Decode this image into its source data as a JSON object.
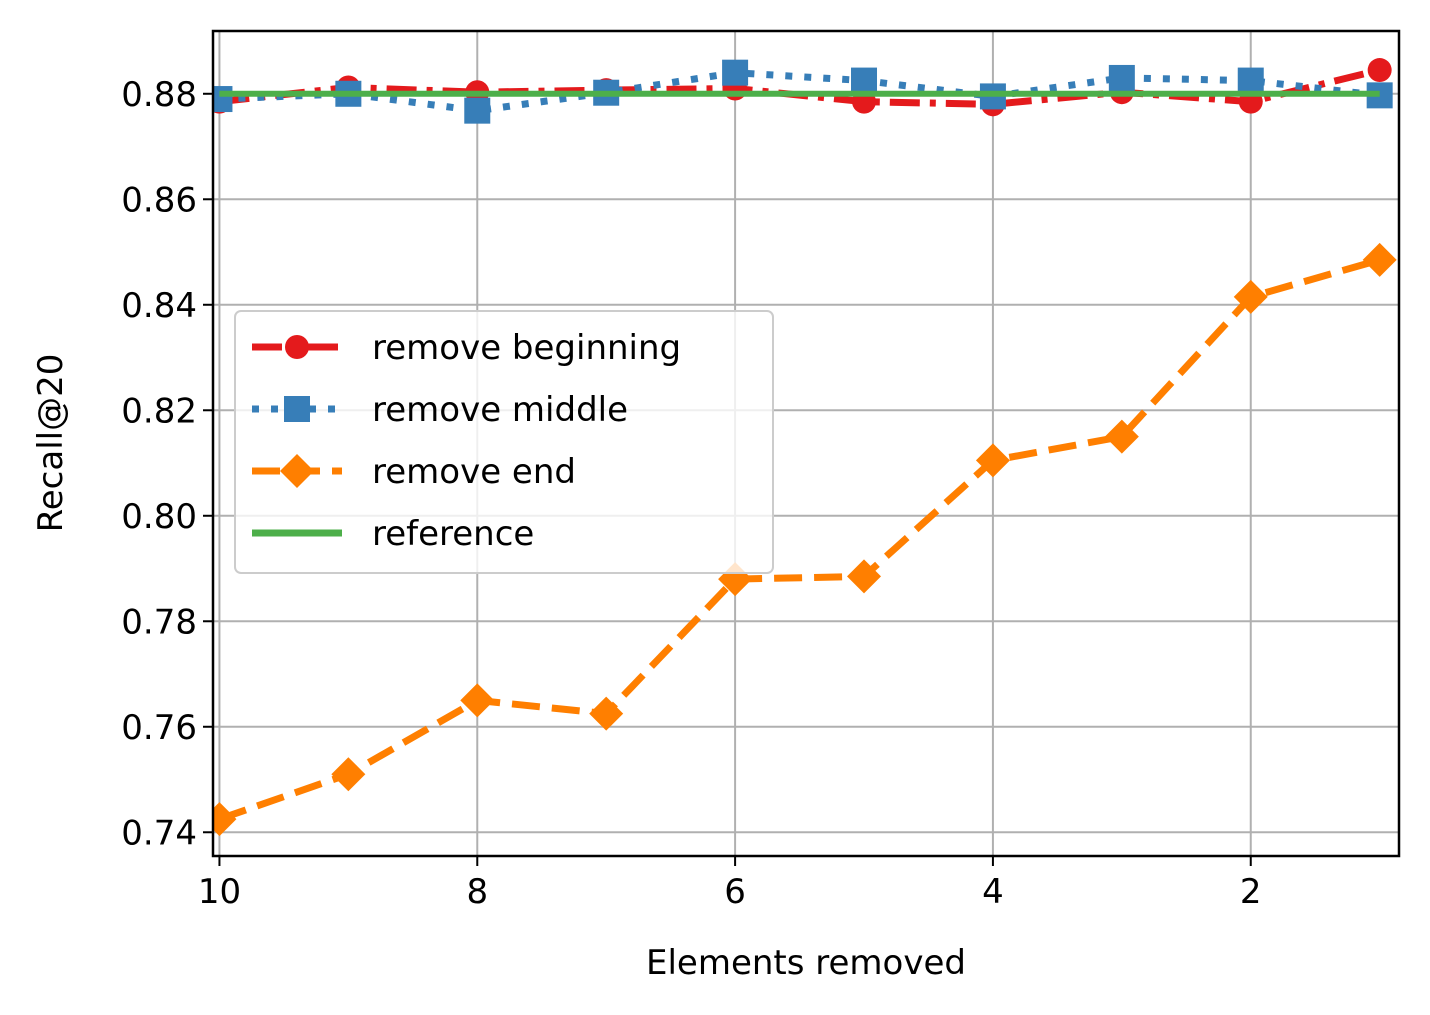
{
  "chart_data": {
    "type": "line",
    "title": "",
    "xlabel": "Elements removed",
    "ylabel": "Recall@20",
    "xlim": [
      10.05,
      0.85
    ],
    "ylim": [
      0.7355,
      0.8919
    ],
    "x_reversed": true,
    "grid": true,
    "legend_position": "center-left",
    "x_ticks": [
      10,
      8,
      6,
      4,
      2
    ],
    "x_tick_labels": [
      "10",
      "8",
      "6",
      "4",
      "2"
    ],
    "y_ticks": [
      0.74,
      0.76,
      0.78,
      0.8,
      0.82,
      0.84,
      0.86,
      0.88
    ],
    "y_tick_labels": [
      "0.74",
      "0.76",
      "0.78",
      "0.80",
      "0.82",
      "0.84",
      "0.86",
      "0.88"
    ],
    "x": [
      10,
      9,
      8,
      7,
      6,
      5,
      4,
      3,
      2,
      1
    ],
    "series": [
      {
        "name": "remove beginning",
        "color": "#e41a1c",
        "marker": "circle",
        "line_style": "dash-dot",
        "values": [
          0.8785,
          0.8812,
          0.8803,
          0.8807,
          0.881,
          0.8785,
          0.878,
          0.8803,
          0.8785,
          0.8845
        ]
      },
      {
        "name": "remove middle",
        "color": "#377eb8",
        "marker": "square",
        "line_style": "dotted",
        "values": [
          0.879,
          0.88,
          0.8768,
          0.8802,
          0.884,
          0.8825,
          0.8795,
          0.883,
          0.8825,
          0.8797
        ]
      },
      {
        "name": "remove end",
        "color": "#ff7f00",
        "marker": "diamond",
        "line_style": "dashed",
        "values": [
          0.7425,
          0.751,
          0.765,
          0.7625,
          0.788,
          0.7885,
          0.8105,
          0.815,
          0.8415,
          0.8485
        ]
      },
      {
        "name": "reference",
        "color": "#4daf4a",
        "marker": "none",
        "line_style": "solid",
        "values": [
          0.88,
          0.88,
          0.88,
          0.88,
          0.88,
          0.88,
          0.88,
          0.88,
          0.88,
          0.88
        ]
      }
    ]
  }
}
